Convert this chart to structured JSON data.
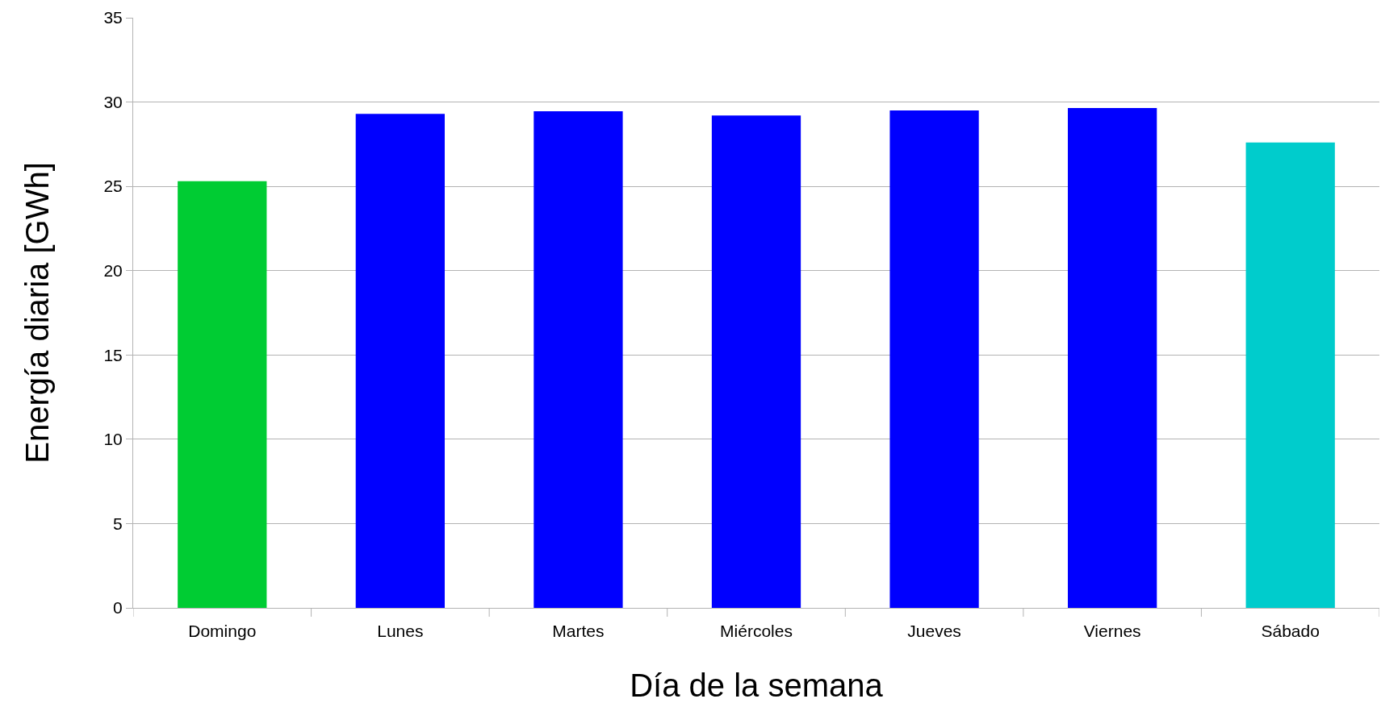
{
  "chart_data": {
    "type": "bar",
    "xlabel": "Día de la semana",
    "ylabel": "Energía diaria [GWh]",
    "categories": [
      "Domingo",
      "Lunes",
      "Martes",
      "Miércoles",
      "Jueves",
      "Viernes",
      "Sábado"
    ],
    "values": [
      25.3,
      29.3,
      29.45,
      29.2,
      29.5,
      29.65,
      27.6
    ],
    "colors": [
      "#00cc33",
      "#0000ff",
      "#0000ff",
      "#0000ff",
      "#0000ff",
      "#0000ff",
      "#00cccc"
    ],
    "ylim": [
      0,
      35
    ],
    "yticks": [
      0,
      5,
      10,
      15,
      20,
      25,
      30,
      35
    ],
    "grid": "y"
  }
}
